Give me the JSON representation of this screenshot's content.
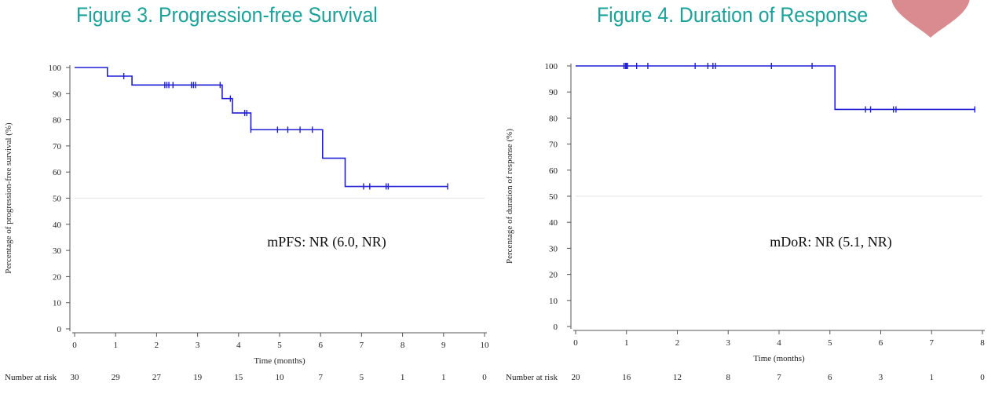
{
  "header": {
    "left_title": "Figure 3. Progression-free Survival",
    "right_title": "Figure 4. Duration of Response"
  },
  "decoration": {
    "color": "#d98b8f"
  },
  "chart_data": [
    {
      "type": "line",
      "step": true,
      "title": "Figure 3. Progression-free Survival",
      "xlabel": "Time (months)",
      "ylabel": "Percentage of progression-free survival (%)",
      "xlim": [
        0,
        10
      ],
      "ylim": [
        0,
        100
      ],
      "xticks": [
        0,
        1,
        2,
        3,
        4,
        5,
        6,
        7,
        8,
        9,
        10
      ],
      "yticks": [
        0,
        10,
        20,
        30,
        40,
        50,
        60,
        70,
        80,
        90,
        100
      ],
      "reference_line_y": 50,
      "annotation": "mPFS: NR (6.0, NR)",
      "line_color": "#1f1fd6",
      "series": [
        {
          "steps": [
            [
              0,
              100
            ],
            [
              0.8,
              96.7
            ],
            [
              1.4,
              93.3
            ],
            [
              3.6,
              88.1
            ],
            [
              3.85,
              82.6
            ],
            [
              4.3,
              76.2
            ],
            [
              6.05,
              65.3
            ],
            [
              6.6,
              54.5
            ],
            [
              9.1,
              54.5
            ]
          ],
          "censored": [
            [
              1.2,
              96.7
            ],
            [
              2.2,
              93.3
            ],
            [
              2.25,
              93.3
            ],
            [
              2.3,
              93.3
            ],
            [
              2.4,
              93.3
            ],
            [
              2.85,
              93.3
            ],
            [
              2.9,
              93.3
            ],
            [
              2.95,
              93.3
            ],
            [
              3.55,
              93.3
            ],
            [
              3.8,
              88.1
            ],
            [
              4.15,
              82.6
            ],
            [
              4.2,
              82.6
            ],
            [
              4.3,
              76.2
            ],
            [
              4.95,
              76.2
            ],
            [
              5.2,
              76.2
            ],
            [
              5.5,
              76.2
            ],
            [
              5.8,
              76.2
            ],
            [
              7.05,
              54.5
            ],
            [
              7.2,
              54.5
            ],
            [
              7.6,
              54.5
            ],
            [
              7.65,
              54.5
            ],
            [
              9.1,
              54.5
            ]
          ]
        }
      ],
      "risk_table": {
        "label": "Number at risk",
        "x": [
          0,
          1,
          2,
          3,
          4,
          5,
          6,
          7,
          8,
          9,
          10
        ],
        "values": [
          30,
          29,
          27,
          19,
          15,
          10,
          7,
          5,
          1,
          1,
          0
        ]
      }
    },
    {
      "type": "line",
      "step": true,
      "title": "Figure 4. Duration of Response",
      "xlabel": "Time (months)",
      "ylabel": "Percentage of duration of response (%)",
      "xlim": [
        0,
        8
      ],
      "ylim": [
        0,
        100
      ],
      "xticks": [
        0,
        1,
        2,
        3,
        4,
        5,
        6,
        7,
        8
      ],
      "yticks": [
        0,
        10,
        20,
        30,
        40,
        50,
        60,
        70,
        80,
        90,
        100
      ],
      "reference_line_y": 50,
      "annotation": "mDoR: NR (5.1, NR)",
      "line_color": "#1f1fd6",
      "series": [
        {
          "steps": [
            [
              0,
              100
            ],
            [
              5.1,
              83.3
            ],
            [
              7.85,
              83.3
            ]
          ],
          "censored": [
            [
              0.95,
              100
            ],
            [
              0.98,
              100
            ],
            [
              1.0,
              100
            ],
            [
              1.02,
              100
            ],
            [
              1.2,
              100
            ],
            [
              1.42,
              100
            ],
            [
              2.35,
              100
            ],
            [
              2.6,
              100
            ],
            [
              2.7,
              100
            ],
            [
              2.75,
              100
            ],
            [
              3.85,
              100
            ],
            [
              4.65,
              100
            ],
            [
              5.7,
              83.3
            ],
            [
              5.8,
              83.3
            ],
            [
              6.25,
              83.3
            ],
            [
              6.3,
              83.3
            ],
            [
              7.85,
              83.3
            ]
          ]
        }
      ],
      "risk_table": {
        "label": "Number at risk",
        "x": [
          0,
          1,
          2,
          3,
          4,
          5,
          6,
          7,
          8
        ],
        "values": [
          20,
          16,
          12,
          8,
          7,
          6,
          3,
          1,
          0
        ]
      }
    }
  ]
}
